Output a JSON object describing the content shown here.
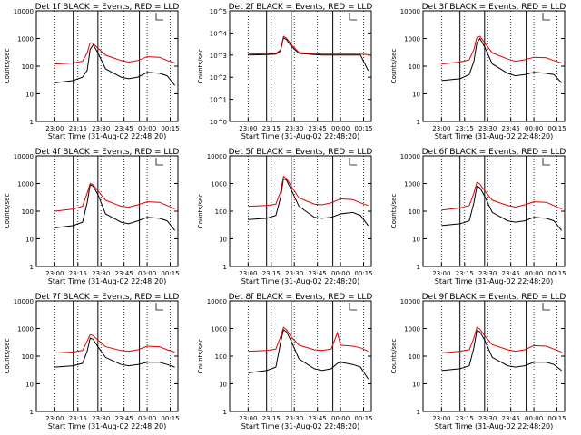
{
  "xaxis": {
    "title": "Start Time (31-Aug-02 22:48:20)",
    "ticks": [
      "23:00",
      "23:15",
      "23:30",
      "23:45",
      "00:00",
      "00:15"
    ]
  },
  "ylabel": "Counts/sec",
  "colors": {
    "events": "#000000",
    "lld": "#e00000",
    "axes": "#000000"
  },
  "chart_data": [
    {
      "type": "line",
      "title": "Det 1f BLACK = Events, RED = LLD",
      "ylabel": "Counts/sec",
      "yscale": "log",
      "ylim": [
        1,
        10000
      ],
      "yticks": [
        "1",
        "10",
        "100",
        "1000",
        "10000"
      ],
      "x_minutes_after_start": [
        12,
        24,
        30,
        33,
        35,
        37,
        40,
        45,
        55,
        60,
        66,
        72,
        80,
        85,
        90
      ],
      "series": [
        {
          "name": "Events",
          "color": "#000000",
          "values": [
            25,
            30,
            40,
            70,
            400,
            600,
            300,
            80,
            40,
            35,
            40,
            60,
            55,
            45,
            20
          ]
        },
        {
          "name": "LLD",
          "color": "#e00000",
          "values": [
            120,
            130,
            150,
            300,
            700,
            650,
            450,
            250,
            160,
            140,
            160,
            220,
            210,
            160,
            130
          ]
        }
      ]
    },
    {
      "type": "line",
      "title": "Det 2f BLACK = Events, RED = LLD",
      "ylabel": "Counts/sec",
      "yscale": "log",
      "ylim": [
        1,
        100000
      ],
      "yticks": [
        "10^0",
        "10^1",
        "10^2",
        "10^3",
        "10^4",
        "10^5"
      ],
      "x_minutes_after_start": [
        12,
        24,
        30,
        33,
        35,
        37,
        40,
        45,
        55,
        60,
        66,
        72,
        80,
        85,
        90
      ],
      "series": [
        {
          "name": "Events",
          "color": "#000000",
          "values": [
            1000,
            1050,
            1100,
            1500,
            6000,
            5000,
            2500,
            1200,
            1050,
            1000,
            1000,
            1000,
            1000,
            1000,
            200
          ]
        },
        {
          "name": "LLD",
          "color": "#e00000",
          "values": [
            1100,
            1150,
            1200,
            1700,
            7000,
            5800,
            3000,
            1300,
            1150,
            1100,
            1100,
            1100,
            1100,
            1100,
            1050
          ]
        }
      ]
    },
    {
      "type": "line",
      "title": "Det 3f BLACK = Events, RED = LLD",
      "ylabel": "Counts/sec",
      "yscale": "log",
      "ylim": [
        1,
        10000
      ],
      "yticks": [
        "1",
        "10",
        "100",
        "1000",
        "10000"
      ],
      "x_minutes_after_start": [
        12,
        24,
        30,
        33,
        35,
        37,
        40,
        45,
        55,
        60,
        66,
        72,
        80,
        85,
        90
      ],
      "series": [
        {
          "name": "Events",
          "color": "#000000",
          "values": [
            30,
            35,
            50,
            150,
            700,
            1000,
            500,
            120,
            55,
            45,
            50,
            60,
            55,
            50,
            25
          ]
        },
        {
          "name": "LLD",
          "color": "#e00000",
          "values": [
            120,
            140,
            170,
            400,
            1100,
            1200,
            700,
            300,
            180,
            150,
            170,
            210,
            200,
            160,
            130
          ]
        }
      ]
    },
    {
      "type": "line",
      "title": "Det 4f BLACK = Events, RED = LLD",
      "ylabel": "Counts/sec",
      "yscale": "log",
      "ylim": [
        1,
        10000
      ],
      "yticks": [
        "1",
        "10",
        "100",
        "1000",
        "10000"
      ],
      "x_minutes_after_start": [
        12,
        24,
        30,
        33,
        35,
        37,
        40,
        45,
        55,
        60,
        66,
        72,
        80,
        85,
        90
      ],
      "series": [
        {
          "name": "Events",
          "color": "#000000",
          "values": [
            25,
            30,
            40,
            200,
            900,
            800,
            400,
            80,
            40,
            35,
            45,
            60,
            55,
            45,
            20
          ]
        },
        {
          "name": "LLD",
          "color": "#e00000",
          "values": [
            100,
            120,
            150,
            450,
            1000,
            900,
            550,
            250,
            150,
            140,
            170,
            220,
            210,
            160,
            120
          ]
        }
      ]
    },
    {
      "type": "line",
      "title": "Det 5f BLACK = Events, RED = LLD",
      "ylabel": "Counts/sec",
      "yscale": "log",
      "ylim": [
        1,
        10000
      ],
      "yticks": [
        "1",
        "10",
        "100",
        "1000",
        "10000"
      ],
      "x_minutes_after_start": [
        12,
        24,
        30,
        33,
        35,
        37,
        40,
        45,
        55,
        60,
        66,
        72,
        80,
        85,
        90
      ],
      "series": [
        {
          "name": "Events",
          "color": "#000000",
          "values": [
            50,
            55,
            70,
            300,
            1500,
            1300,
            600,
            150,
            60,
            55,
            60,
            80,
            90,
            70,
            30
          ]
        },
        {
          "name": "LLD",
          "color": "#e00000",
          "values": [
            150,
            160,
            180,
            500,
            1800,
            1500,
            800,
            300,
            180,
            170,
            200,
            280,
            260,
            200,
            160
          ]
        }
      ]
    },
    {
      "type": "line",
      "title": "Det 6f BLACK = Events, RED = LLD",
      "ylabel": "Counts/sec",
      "yscale": "log",
      "ylim": [
        1,
        10000
      ],
      "yticks": [
        "1",
        "10",
        "100",
        "1000",
        "10000"
      ],
      "x_minutes_after_start": [
        12,
        24,
        30,
        33,
        35,
        37,
        40,
        45,
        55,
        60,
        66,
        72,
        80,
        85,
        90
      ],
      "series": [
        {
          "name": "Events",
          "color": "#000000",
          "values": [
            30,
            35,
            45,
            200,
            800,
            700,
            350,
            90,
            45,
            40,
            45,
            60,
            55,
            45,
            20
          ]
        },
        {
          "name": "LLD",
          "color": "#e00000",
          "values": [
            110,
            130,
            160,
            450,
            1100,
            950,
            550,
            250,
            160,
            140,
            170,
            220,
            210,
            160,
            120
          ]
        }
      ]
    },
    {
      "type": "line",
      "title": "Det 7f BLACK = Events, RED = LLD",
      "ylabel": "Counts/sec",
      "yscale": "log",
      "ylim": [
        1,
        10000
      ],
      "yticks": [
        "1",
        "10",
        "100",
        "1000",
        "10000"
      ],
      "x_minutes_after_start": [
        12,
        24,
        30,
        33,
        35,
        37,
        40,
        45,
        55,
        60,
        66,
        72,
        80,
        85,
        90
      ],
      "series": [
        {
          "name": "Events",
          "color": "#000000",
          "values": [
            40,
            45,
            55,
            150,
            450,
            400,
            220,
            90,
            50,
            45,
            50,
            60,
            60,
            50,
            40
          ]
        },
        {
          "name": "LLD",
          "color": "#e00000",
          "values": [
            130,
            140,
            160,
            350,
            600,
            550,
            380,
            220,
            160,
            150,
            170,
            230,
            220,
            170,
            140
          ]
        }
      ]
    },
    {
      "type": "line",
      "title": "Det 8f BLACK = Events, RED = LLD",
      "ylabel": "Counts/sec",
      "yscale": "log",
      "ylim": [
        1,
        10000
      ],
      "yticks": [
        "1",
        "10",
        "100",
        "1000",
        "10000"
      ],
      "x_minutes_after_start": [
        12,
        24,
        30,
        33,
        35,
        37,
        40,
        45,
        55,
        60,
        66,
        70,
        72,
        80,
        85,
        90
      ],
      "series": [
        {
          "name": "Events",
          "color": "#000000",
          "values": [
            25,
            30,
            40,
            300,
            900,
            750,
            350,
            80,
            35,
            30,
            35,
            55,
            60,
            50,
            40,
            15
          ]
        },
        {
          "name": "LLD",
          "color": "#e00000",
          "values": [
            150,
            160,
            180,
            500,
            1100,
            900,
            500,
            250,
            170,
            160,
            180,
            700,
            250,
            230,
            200,
            150
          ]
        }
      ]
    },
    {
      "type": "line",
      "title": "Det 9f BLACK = Events, RED = LLD",
      "ylabel": "Counts/sec",
      "yscale": "log",
      "ylim": [
        1,
        10000
      ],
      "yticks": [
        "1",
        "10",
        "100",
        "1000",
        "10000"
      ],
      "x_minutes_after_start": [
        12,
        24,
        30,
        33,
        35,
        37,
        40,
        45,
        55,
        60,
        66,
        72,
        80,
        85,
        90
      ],
      "series": [
        {
          "name": "Events",
          "color": "#000000",
          "values": [
            30,
            35,
            45,
            200,
            850,
            750,
            380,
            90,
            45,
            40,
            45,
            60,
            60,
            50,
            30
          ]
        },
        {
          "name": "LLD",
          "color": "#e00000",
          "values": [
            130,
            150,
            170,
            450,
            1100,
            950,
            550,
            260,
            170,
            150,
            170,
            240,
            230,
            180,
            140
          ]
        }
      ]
    }
  ]
}
